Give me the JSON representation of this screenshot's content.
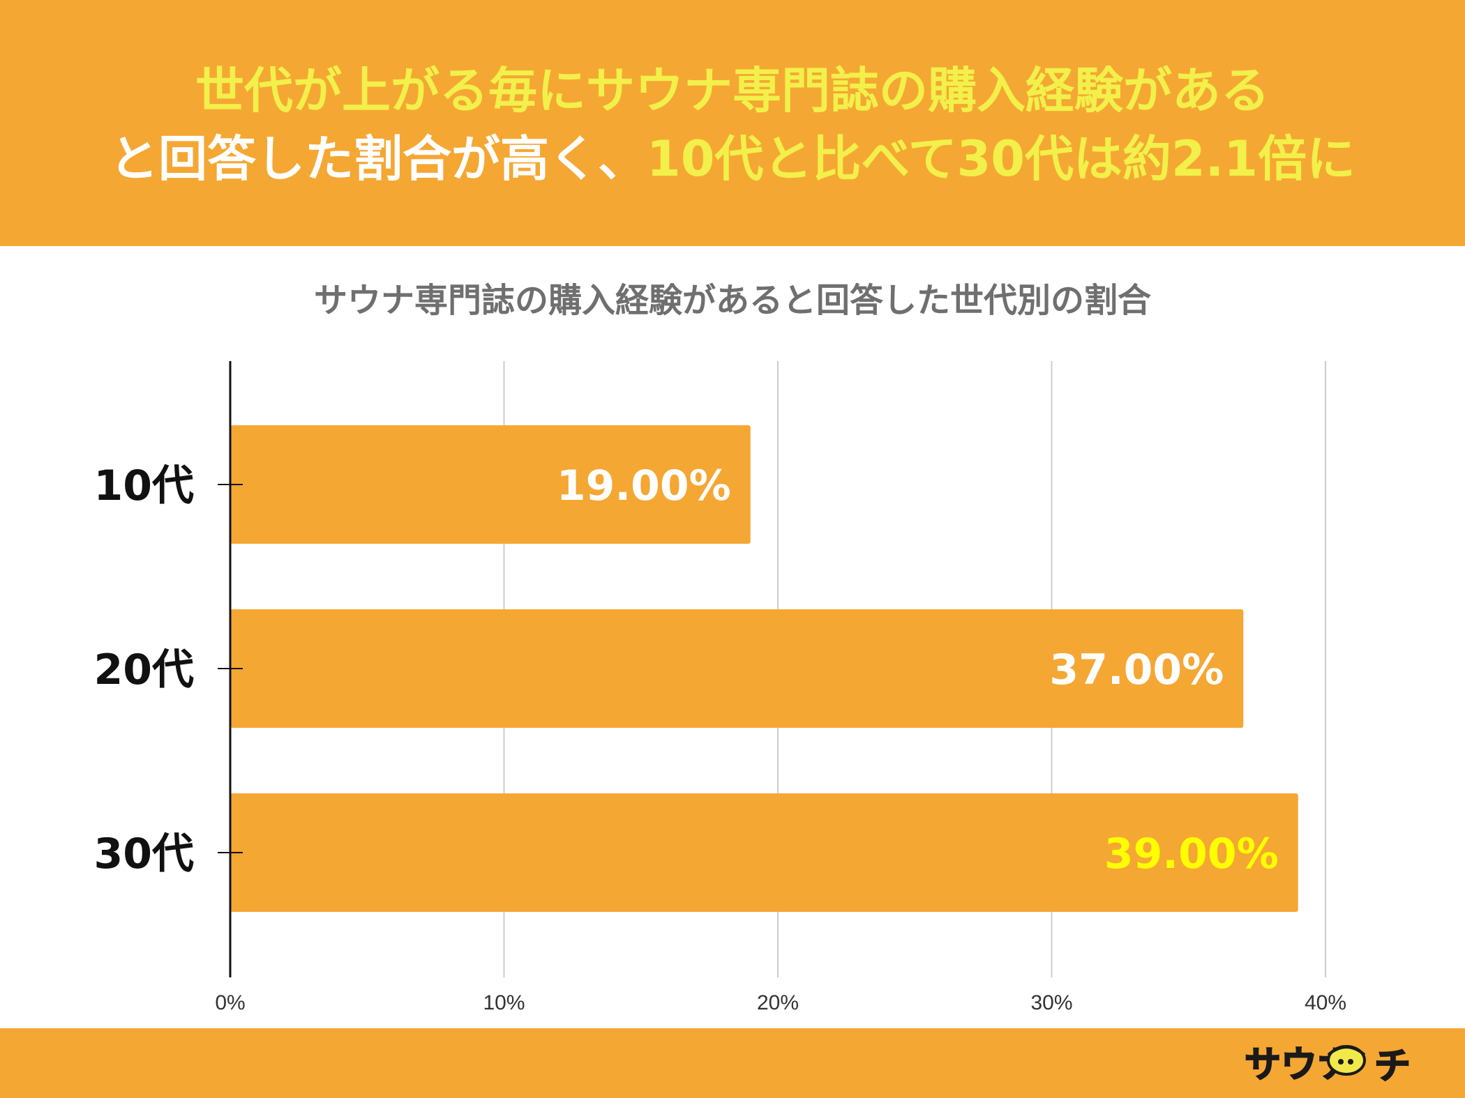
{
  "headline": {
    "line1": "世代が上がる毎にサウナ専門誌の購入経験がある",
    "line2_part1": "と回答した割合が高く、",
    "line2_part2": "10代と比べて30代は約2.1倍に"
  },
  "colors": {
    "brand_orange": "#f5a733",
    "headline_yellow": "#f2f04a",
    "bar_orange": "#f5a733",
    "label_white": "#ffffff",
    "label_highlight": "#ffff00",
    "title_gray": "#6f6f6f"
  },
  "chart_data": {
    "type": "bar",
    "orientation": "horizontal",
    "title": "サウナ専門誌の購入経験があると回答した世代別の割合",
    "categories": [
      "10代",
      "20代",
      "30代"
    ],
    "values": [
      19,
      37,
      39
    ],
    "value_labels": [
      "19.00%",
      "37.00%",
      "39.00%"
    ],
    "highlight_index": 2,
    "xlim": [
      0,
      40
    ],
    "x_ticks": [
      0,
      10,
      20,
      30,
      40
    ],
    "x_tick_labels": [
      "0%",
      "10%",
      "20%",
      "30%",
      "40%"
    ],
    "grid": true,
    "legend": "none",
    "xlabel": "",
    "ylabel": ""
  },
  "footer": {
    "logo_text": "サウナ",
    "logo_text2": "チ",
    "logo_icon": "hat-face-icon"
  }
}
